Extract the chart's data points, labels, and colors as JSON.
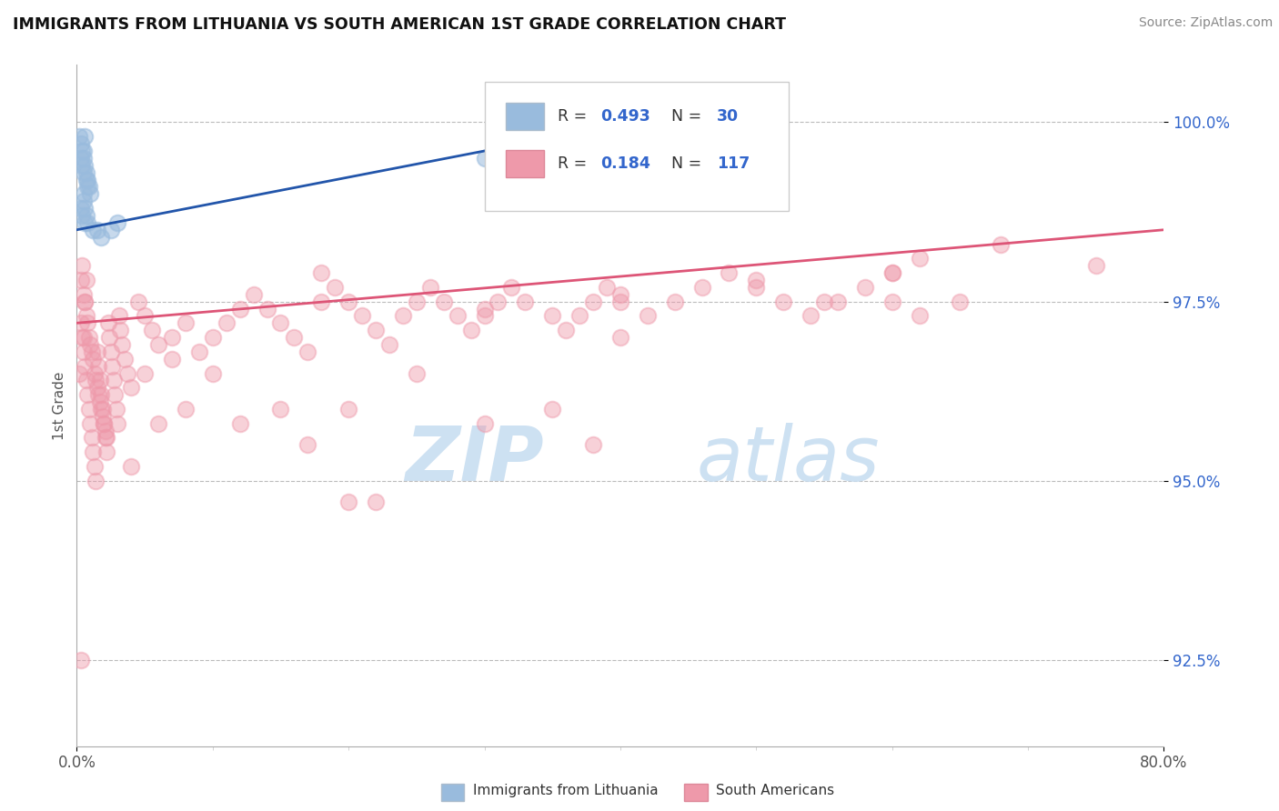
{
  "title": "IMMIGRANTS FROM LITHUANIA VS SOUTH AMERICAN 1ST GRADE CORRELATION CHART",
  "source": "Source: ZipAtlas.com",
  "ylabel": "1st Grade",
  "x_min": 0.0,
  "x_max": 80.0,
  "y_min": 91.3,
  "y_max": 100.8,
  "y_ticks": [
    92.5,
    95.0,
    97.5,
    100.0
  ],
  "blue_color": "#99BBDD",
  "pink_color": "#EE99AA",
  "blue_line_color": "#2255AA",
  "pink_line_color": "#DD5577",
  "r_n_color": "#3366CC",
  "watermark_color": "#D8EAF5",
  "figsize": [
    14.06,
    8.92
  ],
  "dpi": 100,
  "blue_scatter": [
    [
      0.2,
      99.8
    ],
    [
      0.3,
      99.7
    ],
    [
      0.4,
      99.6
    ],
    [
      0.5,
      99.5
    ],
    [
      0.6,
      99.4
    ],
    [
      0.7,
      99.3
    ],
    [
      0.8,
      99.2
    ],
    [
      0.9,
      99.1
    ],
    [
      1.0,
      99.0
    ],
    [
      0.5,
      98.9
    ],
    [
      0.6,
      98.8
    ],
    [
      0.7,
      98.7
    ],
    [
      0.8,
      98.6
    ],
    [
      1.2,
      98.5
    ],
    [
      1.5,
      98.5
    ],
    [
      1.8,
      98.4
    ],
    [
      0.3,
      98.8
    ],
    [
      0.4,
      98.7
    ],
    [
      0.6,
      98.6
    ],
    [
      0.5,
      99.6
    ],
    [
      0.3,
      99.5
    ],
    [
      0.4,
      99.4
    ],
    [
      0.5,
      99.3
    ],
    [
      0.7,
      99.2
    ],
    [
      0.8,
      99.1
    ],
    [
      2.5,
      98.5
    ],
    [
      3.0,
      98.6
    ],
    [
      0.5,
      99.0
    ],
    [
      0.6,
      99.8
    ],
    [
      30.0,
      99.5
    ]
  ],
  "pink_scatter": [
    [
      0.3,
      97.8
    ],
    [
      0.4,
      98.0
    ],
    [
      0.5,
      97.6
    ],
    [
      0.6,
      97.5
    ],
    [
      0.7,
      97.3
    ],
    [
      0.8,
      97.2
    ],
    [
      0.9,
      97.0
    ],
    [
      1.0,
      96.9
    ],
    [
      1.1,
      96.8
    ],
    [
      1.2,
      96.7
    ],
    [
      1.3,
      96.5
    ],
    [
      1.4,
      96.4
    ],
    [
      1.5,
      96.3
    ],
    [
      1.6,
      96.2
    ],
    [
      1.7,
      96.1
    ],
    [
      1.8,
      96.0
    ],
    [
      1.9,
      95.9
    ],
    [
      2.0,
      95.8
    ],
    [
      2.1,
      95.7
    ],
    [
      2.2,
      95.6
    ],
    [
      2.3,
      97.2
    ],
    [
      2.4,
      97.0
    ],
    [
      2.5,
      96.8
    ],
    [
      2.6,
      96.6
    ],
    [
      2.7,
      96.4
    ],
    [
      2.8,
      96.2
    ],
    [
      2.9,
      96.0
    ],
    [
      3.0,
      95.8
    ],
    [
      3.1,
      97.3
    ],
    [
      3.2,
      97.1
    ],
    [
      3.3,
      96.9
    ],
    [
      3.5,
      96.7
    ],
    [
      3.7,
      96.5
    ],
    [
      4.0,
      96.3
    ],
    [
      4.5,
      97.5
    ],
    [
      5.0,
      97.3
    ],
    [
      5.5,
      97.1
    ],
    [
      6.0,
      96.9
    ],
    [
      7.0,
      96.7
    ],
    [
      8.0,
      97.2
    ],
    [
      9.0,
      96.8
    ],
    [
      10.0,
      97.0
    ],
    [
      11.0,
      97.2
    ],
    [
      12.0,
      97.4
    ],
    [
      13.0,
      97.6
    ],
    [
      14.0,
      97.4
    ],
    [
      15.0,
      97.2
    ],
    [
      16.0,
      97.0
    ],
    [
      17.0,
      96.8
    ],
    [
      18.0,
      97.5
    ],
    [
      19.0,
      97.7
    ],
    [
      20.0,
      97.5
    ],
    [
      21.0,
      97.3
    ],
    [
      22.0,
      97.1
    ],
    [
      23.0,
      96.9
    ],
    [
      24.0,
      97.3
    ],
    [
      25.0,
      97.5
    ],
    [
      26.0,
      97.7
    ],
    [
      27.0,
      97.5
    ],
    [
      28.0,
      97.3
    ],
    [
      29.0,
      97.1
    ],
    [
      30.0,
      97.3
    ],
    [
      31.0,
      97.5
    ],
    [
      32.0,
      97.7
    ],
    [
      33.0,
      97.5
    ],
    [
      35.0,
      97.3
    ],
    [
      36.0,
      97.1
    ],
    [
      37.0,
      97.3
    ],
    [
      38.0,
      97.5
    ],
    [
      39.0,
      97.7
    ],
    [
      40.0,
      97.5
    ],
    [
      42.0,
      97.3
    ],
    [
      44.0,
      97.5
    ],
    [
      46.0,
      97.7
    ],
    [
      48.0,
      97.9
    ],
    [
      50.0,
      97.7
    ],
    [
      52.0,
      97.5
    ],
    [
      54.0,
      97.3
    ],
    [
      56.0,
      97.5
    ],
    [
      58.0,
      97.7
    ],
    [
      60.0,
      97.9
    ],
    [
      62.0,
      98.1
    ],
    [
      65.0,
      97.5
    ],
    [
      68.0,
      98.3
    ],
    [
      75.0,
      98.0
    ],
    [
      0.3,
      97.2
    ],
    [
      0.4,
      97.0
    ],
    [
      0.5,
      96.8
    ],
    [
      0.6,
      96.6
    ],
    [
      0.7,
      96.4
    ],
    [
      0.8,
      96.2
    ],
    [
      0.9,
      96.0
    ],
    [
      1.0,
      95.8
    ],
    [
      1.1,
      95.6
    ],
    [
      1.2,
      95.4
    ],
    [
      1.3,
      95.2
    ],
    [
      1.4,
      95.0
    ],
    [
      1.5,
      96.8
    ],
    [
      1.6,
      96.6
    ],
    [
      1.7,
      96.4
    ],
    [
      1.8,
      96.2
    ],
    [
      1.9,
      96.0
    ],
    [
      2.0,
      95.8
    ],
    [
      2.1,
      95.6
    ],
    [
      2.2,
      95.4
    ],
    [
      4.0,
      95.2
    ],
    [
      5.0,
      96.5
    ],
    [
      6.0,
      95.8
    ],
    [
      7.0,
      97.0
    ],
    [
      8.0,
      96.0
    ],
    [
      10.0,
      96.5
    ],
    [
      12.0,
      95.8
    ],
    [
      15.0,
      96.0
    ],
    [
      17.0,
      95.5
    ],
    [
      20.0,
      96.0
    ],
    [
      25.0,
      96.5
    ],
    [
      30.0,
      95.8
    ],
    [
      35.0,
      96.0
    ],
    [
      38.0,
      95.5
    ],
    [
      40.0,
      97.0
    ],
    [
      55.0,
      97.5
    ],
    [
      60.0,
      97.5
    ],
    [
      0.5,
      97.0
    ],
    [
      0.6,
      97.5
    ],
    [
      0.7,
      97.8
    ],
    [
      22.0,
      94.7
    ],
    [
      30.0,
      97.4
    ],
    [
      40.0,
      97.6
    ],
    [
      50.0,
      97.8
    ],
    [
      60.0,
      97.9
    ],
    [
      0.3,
      92.5
    ],
    [
      20.0,
      94.7
    ],
    [
      0.2,
      96.5
    ],
    [
      18.0,
      97.9
    ],
    [
      62.0,
      97.3
    ]
  ],
  "pink_trendline": [
    0.0,
    80.0,
    97.2,
    98.5
  ],
  "blue_trendline": [
    0.0,
    30.0,
    98.5,
    99.6
  ]
}
